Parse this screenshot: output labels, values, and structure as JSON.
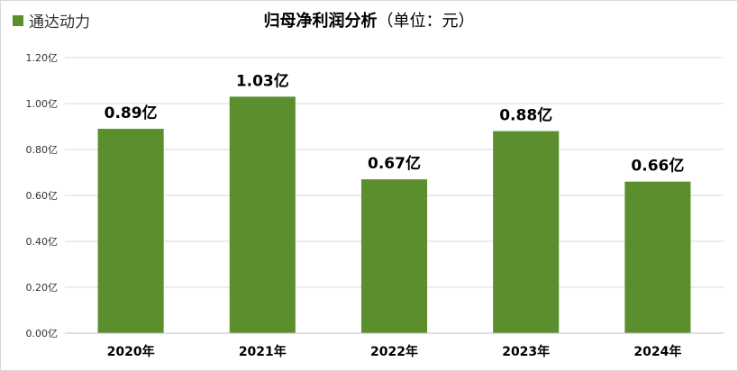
{
  "chart_data": {
    "type": "bar",
    "title": "归母净利润分析",
    "subtitle": "（单位：元）",
    "legend": [
      "通达动力"
    ],
    "legend_placement": "top-left",
    "series": [
      {
        "name": "通达动力",
        "color": "#5b8f2e",
        "values": [
          0.89,
          1.03,
          0.67,
          0.88,
          0.66
        ]
      }
    ],
    "categories": [
      "2020年",
      "2021年",
      "2022年",
      "2023年",
      "2024年"
    ],
    "data_labels": [
      "0.89亿",
      "1.03亿",
      "0.67亿",
      "0.88亿",
      "0.66亿"
    ],
    "yticks": [
      "0.00亿",
      "0.20亿",
      "0.40亿",
      "0.60亿",
      "0.80亿",
      "1.00亿",
      "1.20亿"
    ],
    "ylim": [
      0,
      1.2
    ],
    "grid": true
  }
}
